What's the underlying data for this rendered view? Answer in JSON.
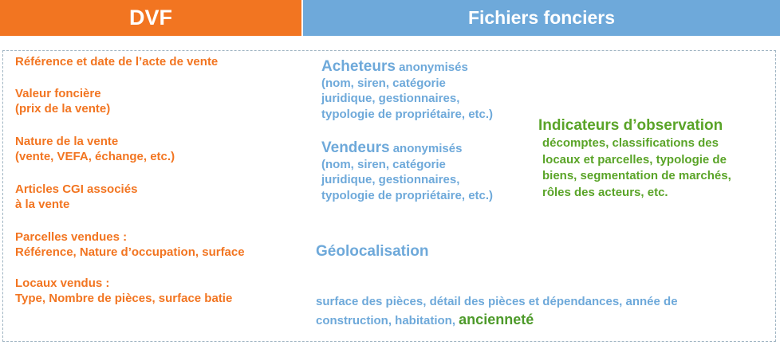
{
  "header": {
    "dvf": "DVF",
    "ff": "Fichiers fonciers"
  },
  "dvf_items": [
    {
      "lines": [
        "Référence et date de l’acte de vente"
      ]
    },
    {
      "lines": [
        "Valeur foncière",
        "(prix de la vente)"
      ]
    },
    {
      "lines": [
        "Nature de la vente",
        "(vente, VEFA, échange, etc.)"
      ]
    },
    {
      "lines": [
        "Articles CGI associés",
        "à la vente"
      ]
    },
    {
      "lines": [
        "Parcelles vendues :",
        "Référence, Nature d’occupation, surface"
      ]
    },
    {
      "lines": [
        "Locaux vendus :",
        "Type, Nombre de pièces, surface batie"
      ]
    }
  ],
  "acheteurs": {
    "title": "Acheteurs",
    "suffix": " anonymisés",
    "lines": [
      "(nom, siren, catégorie",
      "juridique, gestionnaires,",
      "typologie de propriétaire, etc.)"
    ]
  },
  "vendeurs": {
    "title": "Vendeurs",
    "suffix": " anonymisés",
    "lines": [
      "(nom, siren, catégorie",
      "juridique, gestionnaires,",
      "typologie de propriétaire, etc.)"
    ]
  },
  "geolocalisation": "Géolocalisation",
  "surface": {
    "line1": "surface des pièces, détail des pièces et dépendances, année de",
    "line2_prefix": "construction, habitation, ",
    "line2_highlight": "ancienneté"
  },
  "indicateurs": {
    "title": "Indicateurs d’observation",
    "lines": [
      "décomptes, classifications des",
      "locaux et parcelles, typologie de",
      "biens, segmentation de marchés,",
      "rôles des acteurs, etc."
    ]
  },
  "colors": {
    "dvf_orange": "#f27521",
    "ff_blue": "#6ea9da",
    "indic_green": "#5aa428"
  }
}
